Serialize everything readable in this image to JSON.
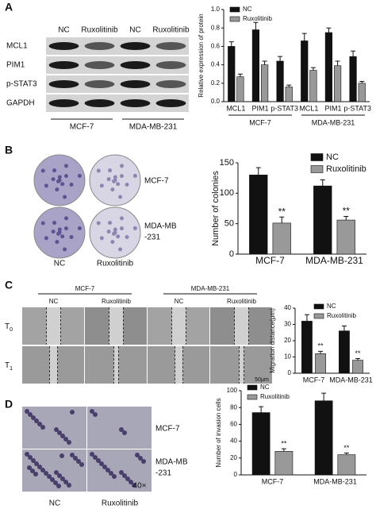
{
  "panel_labels": [
    "A",
    "B",
    "C",
    "D"
  ],
  "blot": {
    "columns": [
      "NC",
      "Ruxolitinib",
      "NC",
      "Ruxolitinib"
    ],
    "rows": [
      "MCL1",
      "PIM1",
      "p-STAT3",
      "GAPDH"
    ],
    "groups": [
      "MCF-7",
      "MDA-MB-231"
    ]
  },
  "colony": {
    "row_labels": [
      [
        "MCF-7"
      ],
      [
        "MDA-MB",
        "-231"
      ]
    ],
    "columns": [
      "NC",
      "Ruxolitinib"
    ]
  },
  "wound": {
    "groups": [
      "MCF-7",
      "MDA-MB-231"
    ],
    "columns": [
      "NC",
      "Ruxolitinib",
      "NC",
      "Ruxolitinib"
    ],
    "rows": [
      {
        "base": "T",
        "sub": "0"
      },
      {
        "base": "T",
        "sub": "1"
      }
    ],
    "scale_bar": "50μm"
  },
  "invasion": {
    "row_labels": [
      [
        "MCF-7"
      ],
      [
        "MDA-MB",
        "-231"
      ]
    ],
    "columns": [
      "NC",
      "Ruxolitinib"
    ],
    "magnification": "40×"
  },
  "chart_data": [
    {
      "type": "bar",
      "ylabel": "Relative expression of protein",
      "categories": [
        "MCL1",
        "PIM1",
        "p-STAT3",
        "MCL1",
        "PIM1",
        "p-STAT3"
      ],
      "groups": [
        "MCF-7",
        "MDA-MB-231"
      ],
      "series": [
        {
          "name": "NC",
          "color": "#111111",
          "values": [
            0.6,
            0.78,
            0.44,
            0.66,
            0.75,
            0.49
          ],
          "errors": [
            0.05,
            0.08,
            0.05,
            0.08,
            0.05,
            0.06
          ]
        },
        {
          "name": "Ruxolitinib",
          "color": "#999999",
          "values": [
            0.27,
            0.4,
            0.16,
            0.34,
            0.39,
            0.2
          ],
          "errors": [
            0.03,
            0.04,
            0.02,
            0.03,
            0.05,
            0.02
          ]
        }
      ],
      "ylim": [
        0,
        1
      ],
      "yticks": [
        {
          "value": 0,
          "label": "0.0"
        },
        {
          "value": 0.2,
          "label": "0.2"
        },
        {
          "value": 0.4,
          "label": "0.4"
        },
        {
          "value": 0.6,
          "label": "0.6"
        },
        {
          "value": 0.8,
          "label": "0.8"
        },
        {
          "value": 1,
          "label": "1.0"
        }
      ],
      "legend": "upper left"
    },
    {
      "type": "bar",
      "ylabel": "Number of colonies",
      "categories": [
        "MCF-7",
        "MDA-MB-231"
      ],
      "series": [
        {
          "name": "NC",
          "color": "#111111",
          "values": [
            130,
            112
          ],
          "errors": [
            12,
            10
          ]
        },
        {
          "name": "Ruxolitinib",
          "color": "#999999",
          "values": [
            51,
            56
          ],
          "errors": [
            10,
            6
          ],
          "significance": [
            "**",
            "**"
          ]
        }
      ],
      "ylim": [
        0,
        150
      ],
      "yticks": [
        0,
        50,
        100,
        150
      ],
      "legend": "upper right"
    },
    {
      "type": "bar",
      "ylabel": "Migration distance(μm)",
      "categories": [
        "MCF-7",
        "MDA-MB-231"
      ],
      "series": [
        {
          "name": "NC",
          "color": "#111111",
          "values": [
            32,
            26
          ],
          "errors": [
            4,
            3
          ]
        },
        {
          "name": "Ruxolitinib",
          "color": "#999999",
          "values": [
            12,
            8
          ],
          "errors": [
            1.5,
            1
          ],
          "significance": [
            "**",
            "**"
          ]
        }
      ],
      "ylim": [
        0,
        40
      ],
      "yticks": [
        0,
        10,
        20,
        30,
        40
      ],
      "legend": "upper right"
    },
    {
      "type": "bar",
      "ylabel": "Number of invasion cells",
      "categories": [
        "MCF-7",
        "MDA-MB-231"
      ],
      "series": [
        {
          "name": "NC",
          "color": "#111111",
          "values": [
            74,
            88
          ],
          "errors": [
            7,
            9
          ]
        },
        {
          "name": "Ruxolitinib",
          "color": "#999999",
          "values": [
            28,
            24
          ],
          "errors": [
            3,
            2
          ],
          "significance": [
            "**",
            "**"
          ]
        }
      ],
      "ylim": [
        0,
        100
      ],
      "yticks": [
        0,
        20,
        40,
        60,
        80,
        100
      ],
      "legend": "upper left"
    }
  ]
}
